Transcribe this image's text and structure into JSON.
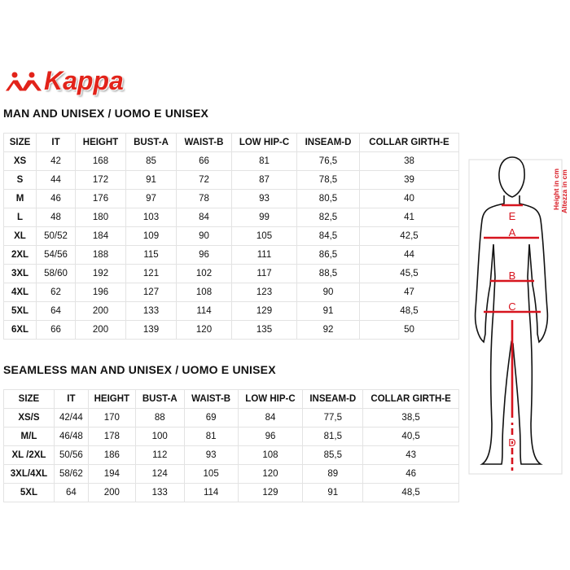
{
  "brand": {
    "logo_text": "Kappa",
    "color": "#e2231a"
  },
  "table1": {
    "title": "MAN AND UNISEX / UOMO E UNISEX",
    "headers": [
      "SIZE",
      "IT",
      "HEIGHT",
      "BUST-A",
      "WAIST-B",
      "LOW HIP-C",
      "INSEAM-D",
      "COLLAR GIRTH-E"
    ],
    "rows": [
      [
        "XS",
        "42",
        "168",
        "85",
        "66",
        "81",
        "76,5",
        "38"
      ],
      [
        "S",
        "44",
        "172",
        "91",
        "72",
        "87",
        "78,5",
        "39"
      ],
      [
        "M",
        "46",
        "176",
        "97",
        "78",
        "93",
        "80,5",
        "40"
      ],
      [
        "L",
        "48",
        "180",
        "103",
        "84",
        "99",
        "82,5",
        "41"
      ],
      [
        "XL",
        "50/52",
        "184",
        "109",
        "90",
        "105",
        "84,5",
        "42,5"
      ],
      [
        "2XL",
        "54/56",
        "188",
        "115",
        "96",
        "111",
        "86,5",
        "44"
      ],
      [
        "3XL",
        "58/60",
        "192",
        "121",
        "102",
        "117",
        "88,5",
        "45,5"
      ],
      [
        "4XL",
        "62",
        "196",
        "127",
        "108",
        "123",
        "90",
        "47"
      ],
      [
        "5XL",
        "64",
        "200",
        "133",
        "114",
        "129",
        "91",
        "48,5"
      ],
      [
        "6XL",
        "66",
        "200",
        "139",
        "120",
        "135",
        "92",
        "50"
      ]
    ]
  },
  "table2": {
    "title": "SEAMLESS MAN AND UNISEX / UOMO E UNISEX",
    "headers": [
      "SIZE",
      "IT",
      "HEIGHT",
      "BUST-A",
      "WAIST-B",
      "LOW HIP-C",
      "INSEAM-D",
      "COLLAR GIRTH-E"
    ],
    "rows": [
      [
        "XS/S",
        "42/44",
        "170",
        "88",
        "69",
        "84",
        "77,5",
        "38,5"
      ],
      [
        "M/L",
        "46/48",
        "178",
        "100",
        "81",
        "96",
        "81,5",
        "40,5"
      ],
      [
        "XL /2XL",
        "50/56",
        "186",
        "112",
        "93",
        "108",
        "85,5",
        "43"
      ],
      [
        "3XL/4XL",
        "58/62",
        "194",
        "124",
        "105",
        "120",
        "89",
        "46"
      ],
      [
        "5XL",
        "64",
        "200",
        "133",
        "114",
        "129",
        "91",
        "48,5"
      ]
    ]
  },
  "figure": {
    "labels": {
      "a": "A",
      "b": "B",
      "c": "C",
      "d": "D",
      "e": "E"
    },
    "height_en": "Height in cm",
    "height_it": "Altezza in cm",
    "accent": "#d7141e"
  }
}
